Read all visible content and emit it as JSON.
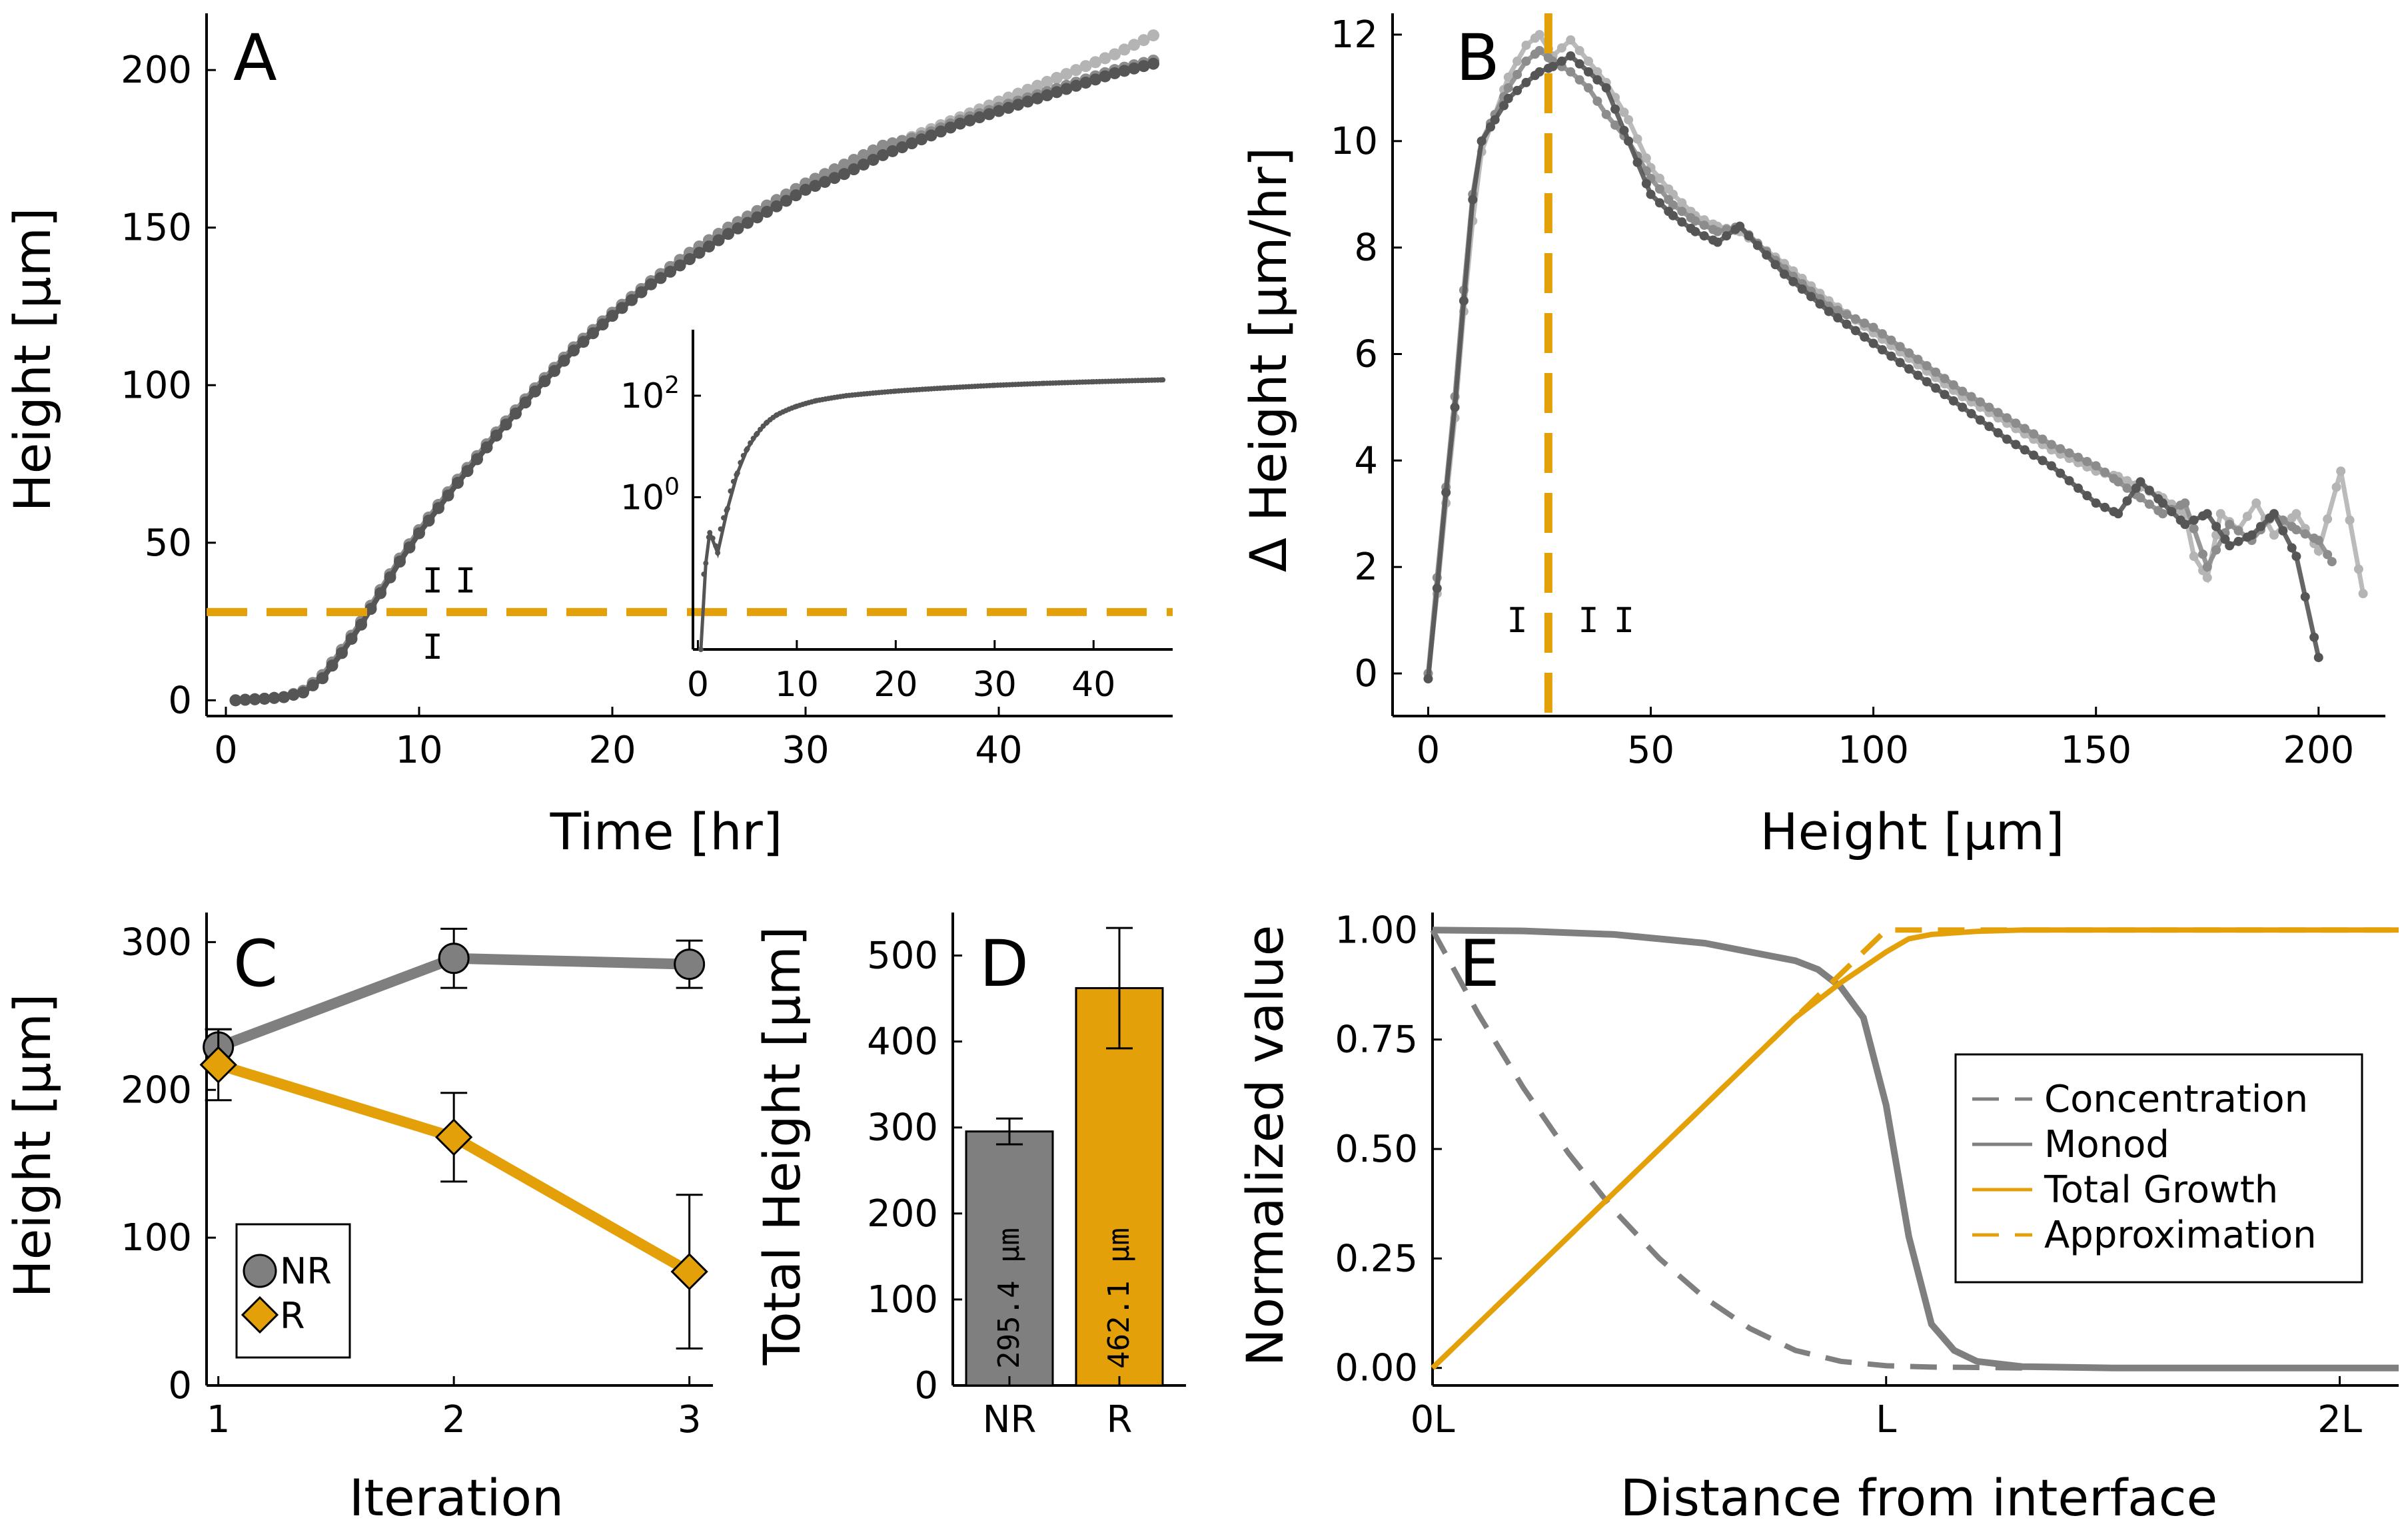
{
  "colors": {
    "orange": "#E3A008",
    "light": "#B4B4B4",
    "mid": "#8C8C8C",
    "dark": "#555555",
    "bar_gray": "#7F7F7F"
  },
  "chart_data": [
    {
      "panel": "A",
      "type": "scatter",
      "xlabel": "Time [hr]",
      "ylabel": "Height [μm]",
      "xlim": [
        -1,
        49
      ],
      "ylim": [
        -5,
        218
      ],
      "xticks": [
        0,
        10,
        20,
        30,
        40
      ],
      "yticks": [
        0,
        50,
        100,
        150,
        200
      ],
      "hline": 28,
      "series": [
        {
          "x": [
            0.5,
            2,
            3,
            4,
            5,
            6,
            7,
            8,
            9,
            10,
            11,
            12,
            14,
            16,
            18,
            20,
            22,
            24,
            26,
            28,
            30,
            32,
            34,
            36,
            38,
            40,
            42,
            44,
            46,
            48
          ],
          "values": [
            0,
            0.5,
            1,
            3,
            8,
            16,
            25,
            35,
            45,
            54,
            62,
            70,
            85,
            99,
            112,
            123,
            133,
            142,
            150,
            157,
            163,
            169,
            175,
            180,
            185,
            190,
            195,
            200,
            205,
            211
          ]
        },
        {
          "x": [
            0.5,
            2,
            3,
            4,
            5,
            6,
            7,
            8,
            9,
            10,
            11,
            12,
            14,
            16,
            18,
            20,
            22,
            24,
            26,
            28,
            30,
            32,
            34,
            36,
            38,
            40,
            42,
            44,
            46,
            48
          ],
          "values": [
            0,
            0.5,
            1,
            3,
            8,
            16,
            25,
            35,
            45,
            54,
            62,
            70,
            85,
            99,
            112,
            123,
            133,
            142,
            150,
            157,
            164,
            170,
            176,
            179,
            184,
            188,
            192,
            196,
            200,
            203
          ]
        },
        {
          "x": [
            0.5,
            2,
            3,
            4,
            5,
            6,
            7,
            8,
            9,
            10,
            11,
            12,
            14,
            16,
            18,
            20,
            22,
            24,
            26,
            28,
            30,
            32,
            34,
            36,
            38,
            40,
            42,
            44,
            46,
            48
          ],
          "values": [
            0,
            0.5,
            1,
            2.5,
            7,
            15,
            24,
            34,
            44,
            53,
            61,
            69,
            84,
            98,
            111,
            122,
            132,
            140,
            148,
            155,
            162,
            167,
            173,
            178,
            183,
            187,
            191,
            195,
            199,
            202
          ]
        }
      ],
      "annotations": [
        {
          "text": "I",
          "x": 10.7,
          "y": 38
        },
        {
          "text": "I",
          "x": 12.4,
          "y": 38
        },
        {
          "text": "I",
          "x": 10.7,
          "y": 17
        }
      ],
      "inset": {
        "xlim": [
          -0.5,
          48
        ],
        "log_y": true,
        "xticks": [
          0,
          10,
          20,
          30,
          40
        ],
        "yticks": [
          "10^0",
          "10^2"
        ],
        "series": {
          "x": [
            0.3,
            0.8,
            1.2,
            2,
            3,
            4,
            5,
            6,
            7,
            8,
            10,
            12,
            15,
            20,
            25,
            30,
            35,
            40,
            45,
            47
          ],
          "values": [
            0.001,
            0.05,
            0.2,
            0.08,
            0.6,
            3,
            9,
            18,
            30,
            42,
            62,
            80,
            100,
            123,
            142,
            160,
            175,
            188,
            200,
            205
          ]
        }
      }
    },
    {
      "panel": "B",
      "type": "line",
      "xlabel": "Height [μm]",
      "ylabel": "Δ Height [μm/hr]",
      "xlim": [
        -8,
        215
      ],
      "ylim": [
        -0.8,
        12.4
      ],
      "xticks": [
        0,
        50,
        100,
        150,
        200
      ],
      "yticks": [
        0,
        2,
        4,
        6,
        8,
        10,
        12
      ],
      "vline": 27,
      "series": [
        {
          "x": [
            0,
            2,
            4,
            6,
            8,
            10,
            12,
            15,
            18,
            22,
            25,
            28,
            32,
            36,
            40,
            45,
            50,
            55,
            60,
            65,
            70,
            80,
            90,
            100,
            110,
            120,
            130,
            140,
            150,
            155,
            160,
            165,
            170,
            172,
            175,
            178,
            182,
            186,
            190,
            195,
            200,
            205,
            210
          ],
          "values": [
            0,
            1.5,
            3.2,
            4.8,
            6.8,
            8.5,
            9.8,
            10.5,
            11.2,
            11.8,
            12.0,
            11.6,
            11.9,
            11.5,
            11.1,
            10.4,
            9.5,
            9.0,
            8.6,
            8.4,
            8.3,
            7.7,
            7.0,
            6.4,
            5.8,
            5.2,
            4.7,
            4.2,
            3.8,
            3.7,
            3.5,
            3.3,
            3.0,
            2.2,
            1.8,
            3.0,
            2.7,
            3.2,
            2.6,
            3.0,
            2.3,
            3.8,
            1.5
          ]
        },
        {
          "x": [
            0,
            2,
            4,
            6,
            8,
            10,
            12,
            15,
            18,
            22,
            25,
            28,
            32,
            36,
            40,
            45,
            50,
            55,
            60,
            65,
            70,
            80,
            90,
            100,
            110,
            120,
            130,
            140,
            150,
            155,
            160,
            165,
            170,
            175,
            180,
            185,
            190,
            195,
            200,
            203
          ],
          "values": [
            0,
            1.8,
            3.5,
            5.2,
            7.2,
            9.0,
            10.0,
            10.5,
            11.0,
            11.5,
            11.7,
            11.5,
            11.3,
            11.0,
            10.5,
            10.0,
            9.3,
            8.8,
            8.5,
            8.3,
            8.4,
            7.6,
            6.9,
            6.5,
            5.9,
            5.3,
            4.8,
            4.3,
            3.9,
            3.6,
            3.3,
            3.0,
            3.2,
            2.0,
            2.8,
            2.5,
            3.0,
            2.7,
            2.5,
            2.1
          ]
        },
        {
          "x": [
            0,
            2,
            4,
            6,
            8,
            10,
            12,
            15,
            18,
            22,
            25,
            28,
            32,
            36,
            40,
            45,
            50,
            55,
            60,
            65,
            70,
            80,
            90,
            100,
            110,
            120,
            130,
            140,
            150,
            155,
            160,
            165,
            170,
            175,
            180,
            185,
            190,
            195,
            200
          ],
          "values": [
            -0.1,
            1.6,
            3.4,
            5.0,
            7.0,
            8.9,
            10.0,
            10.4,
            10.8,
            11.1,
            11.3,
            11.4,
            11.6,
            11.3,
            11.0,
            10.0,
            9.0,
            8.6,
            8.3,
            8.1,
            8.4,
            7.5,
            6.8,
            6.2,
            5.6,
            5.0,
            4.4,
            3.9,
            3.2,
            3.0,
            3.6,
            3.2,
            2.8,
            3.0,
            2.4,
            2.6,
            3.0,
            2.2,
            0.3
          ]
        }
      ],
      "annotations": [
        {
          "text": "I",
          "x": 20,
          "y": 1.0
        },
        {
          "text": "I",
          "x": 36,
          "y": 1.0
        },
        {
          "text": "I",
          "x": 44,
          "y": 1.0
        }
      ]
    },
    {
      "panel": "C",
      "type": "line",
      "xlabel": "Iteration",
      "ylabel": "Height [μm]",
      "xlim": [
        0.95,
        3.1
      ],
      "ylim": [
        0,
        320
      ],
      "xticks": [
        1,
        2,
        3
      ],
      "yticks": [
        0,
        100,
        200,
        300
      ],
      "series": [
        {
          "name": "NR",
          "x": [
            1,
            2,
            3
          ],
          "values": [
            229,
            289,
            285
          ],
          "err": [
            12,
            20,
            16
          ]
        },
        {
          "name": "R",
          "x": [
            1,
            2,
            3
          ],
          "values": [
            217,
            168,
            77
          ],
          "err": [
            24,
            30,
            52
          ]
        }
      ],
      "legend": "bottom-left"
    },
    {
      "panel": "D",
      "type": "bar",
      "ylabel": "Total Height [μm]",
      "categories": [
        "NR",
        "R"
      ],
      "values": [
        295.4,
        462.1
      ],
      "err": [
        15,
        70
      ],
      "ylim": [
        0,
        550
      ],
      "yticks": [
        0,
        100,
        200,
        300,
        400,
        500
      ],
      "bar_labels": [
        "295.4 μm",
        "462.1 μm"
      ]
    },
    {
      "panel": "E",
      "type": "line",
      "xlabel": "Distance from interface",
      "ylabel": "Normalized value",
      "xlim": [
        0,
        2.13
      ],
      "ylim": [
        -0.04,
        1.04
      ],
      "xticks": [
        "0L",
        "L",
        "2L"
      ],
      "yticks": [
        "0.00",
        "0.25",
        "0.50",
        "0.75",
        "1.00"
      ],
      "series": [
        {
          "name": "Concentration",
          "style": "dashed",
          "x": [
            0,
            0.1,
            0.2,
            0.3,
            0.4,
            0.5,
            0.6,
            0.7,
            0.8,
            0.9,
            1.0,
            1.1,
            1.2,
            1.3
          ],
          "values": [
            1.0,
            0.81,
            0.64,
            0.49,
            0.36,
            0.25,
            0.16,
            0.09,
            0.04,
            0.015,
            0.005,
            0.002,
            0.001,
            0.0
          ]
        },
        {
          "name": "Monod",
          "style": "solid",
          "x": [
            0,
            0.2,
            0.4,
            0.6,
            0.7,
            0.8,
            0.85,
            0.9,
            0.95,
            1.0,
            1.05,
            1.1,
            1.15,
            1.2,
            1.3,
            1.5,
            2.13
          ],
          "values": [
            1.0,
            0.998,
            0.99,
            0.97,
            0.95,
            0.93,
            0.91,
            0.87,
            0.8,
            0.6,
            0.3,
            0.1,
            0.04,
            0.015,
            0.003,
            0.0,
            0.0
          ]
        },
        {
          "name": "Total Growth",
          "style": "solid",
          "x": [
            0,
            0.2,
            0.4,
            0.6,
            0.8,
            0.9,
            1.0,
            1.05,
            1.1,
            1.2,
            1.3,
            1.5,
            2.13
          ],
          "values": [
            0.0,
            0.2,
            0.4,
            0.6,
            0.8,
            0.88,
            0.95,
            0.98,
            0.99,
            0.997,
            1.0,
            1.0,
            1.0
          ]
        },
        {
          "name": "Approximation",
          "style": "dashed",
          "x": [
            0,
            0.5,
            1.0,
            2.13
          ],
          "values": [
            0.0,
            0.5,
            1.0,
            1.0
          ]
        }
      ],
      "legend": "right"
    }
  ]
}
